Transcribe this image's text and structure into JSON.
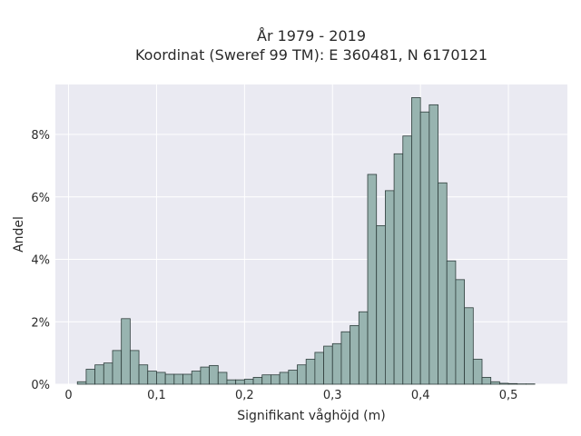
{
  "colors": {
    "background": "#eaeaf2",
    "bar_fill": "#98b4b0",
    "bar_edge": "#2f3e3c"
  },
  "chart_data": {
    "type": "bar",
    "title": "År 1979 - 2019",
    "subtitle": "Koordinat (Sweref 99 TM): E 360481, N 6170121",
    "xlabel": "Signifikant våghöjd (m)",
    "ylabel": "Andel",
    "xlim": [
      -0.015,
      0.567
    ],
    "ylim": [
      0,
      9.6
    ],
    "xticks": [
      0,
      0.1,
      0.2,
      0.3,
      0.4,
      0.5
    ],
    "xtick_labels": [
      "0",
      "0,1",
      "0,2",
      "0,3",
      "0,4",
      "0,5"
    ],
    "yticks": [
      0,
      2,
      4,
      6,
      8
    ],
    "ytick_labels": [
      "0%",
      "2%",
      "4%",
      "6%",
      "8%"
    ],
    "grid": true,
    "bin_width": 0.01,
    "bin_starts": [
      0.01,
      0.02,
      0.03,
      0.04,
      0.05,
      0.06,
      0.07,
      0.08,
      0.09,
      0.1,
      0.11,
      0.12,
      0.13,
      0.14,
      0.15,
      0.16,
      0.17,
      0.18,
      0.19,
      0.2,
      0.21,
      0.22,
      0.23,
      0.24,
      0.25,
      0.26,
      0.27,
      0.28,
      0.29,
      0.3,
      0.31,
      0.32,
      0.33,
      0.34,
      0.35,
      0.36,
      0.37,
      0.38,
      0.39,
      0.4,
      0.41,
      0.42,
      0.43,
      0.44,
      0.45,
      0.46,
      0.47,
      0.48,
      0.49,
      0.5,
      0.51,
      0.52
    ],
    "values": [
      0.08,
      0.48,
      0.62,
      0.68,
      1.08,
      2.1,
      1.08,
      0.62,
      0.42,
      0.38,
      0.32,
      0.32,
      0.32,
      0.42,
      0.55,
      0.6,
      0.38,
      0.14,
      0.14,
      0.16,
      0.22,
      0.3,
      0.3,
      0.38,
      0.45,
      0.62,
      0.8,
      1.02,
      1.22,
      1.3,
      1.68,
      1.88,
      2.32,
      6.72,
      5.08,
      6.2,
      7.38,
      7.95,
      9.18,
      8.72,
      8.95,
      6.45,
      3.95,
      3.35,
      2.45,
      0.8,
      0.22,
      0.08,
      0.03,
      0.02,
      0.01,
      0.01
    ]
  }
}
